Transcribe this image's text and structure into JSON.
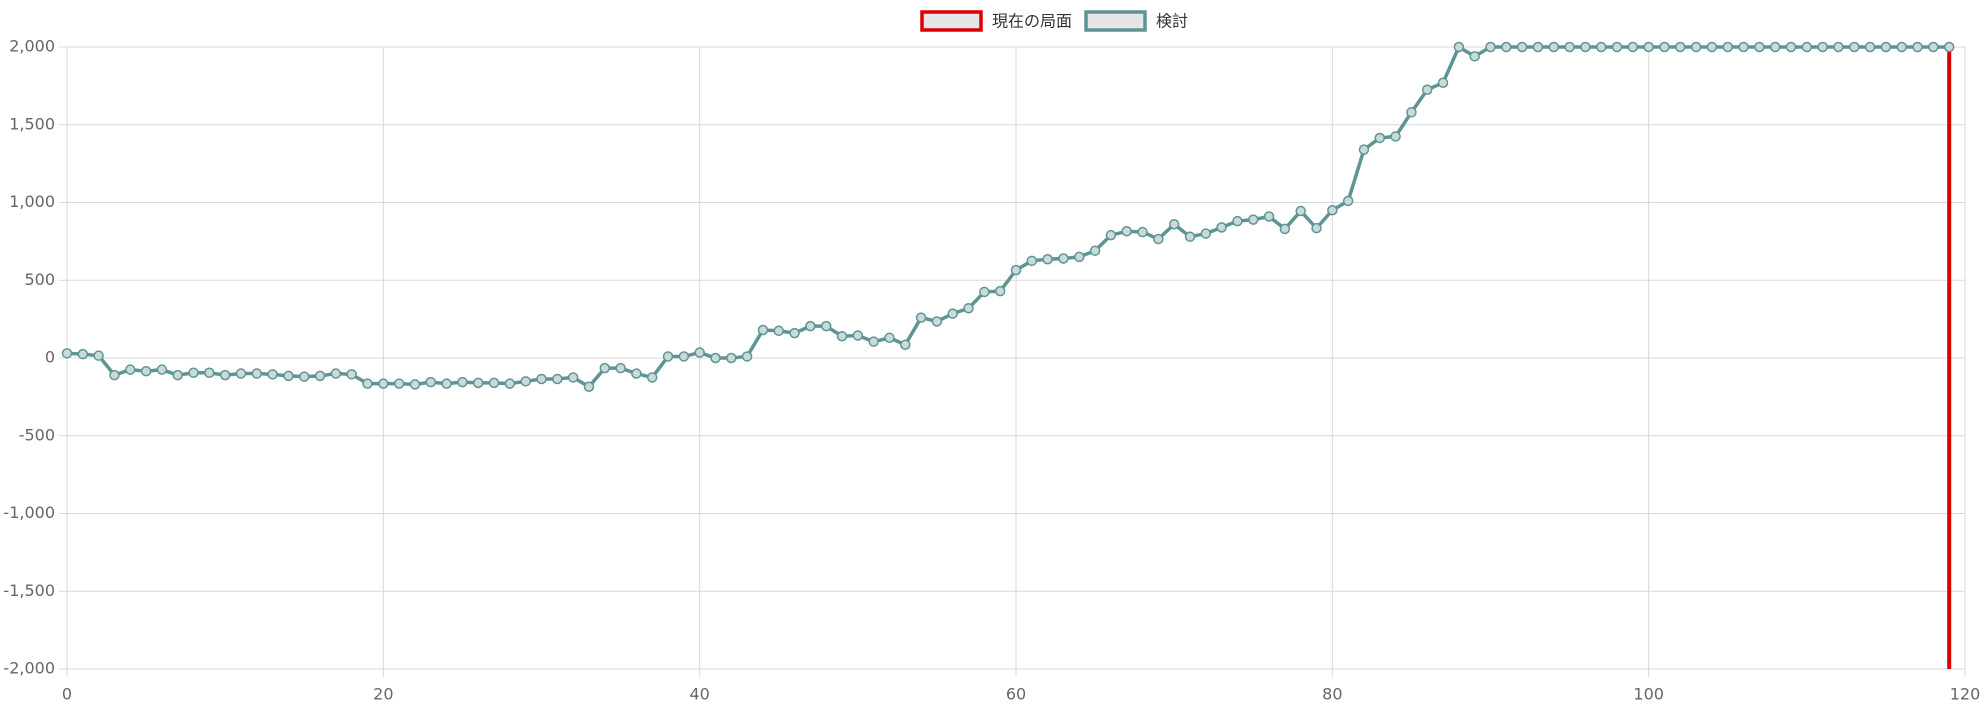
{
  "chart_data": {
    "type": "line",
    "series": [
      {
        "name": "現在の局面",
        "color": "#dd0000",
        "points": false,
        "x": [
          119,
          119
        ],
        "values": [
          -2000,
          2000
        ]
      },
      {
        "name": "検討",
        "color": "#5f9494",
        "points": true,
        "x": [
          0,
          1,
          2,
          3,
          4,
          5,
          6,
          7,
          8,
          9,
          10,
          11,
          12,
          13,
          14,
          15,
          16,
          17,
          18,
          19,
          20,
          21,
          22,
          23,
          24,
          25,
          26,
          27,
          28,
          29,
          30,
          31,
          32,
          33,
          34,
          35,
          36,
          37,
          38,
          39,
          40,
          41,
          42,
          43,
          44,
          45,
          46,
          47,
          48,
          49,
          50,
          51,
          52,
          53,
          54,
          55,
          56,
          57,
          58,
          59,
          60,
          61,
          62,
          63,
          64,
          65,
          66,
          67,
          68,
          69,
          70,
          71,
          72,
          73,
          74,
          75,
          76,
          77,
          78,
          79,
          80,
          81,
          82,
          83,
          84,
          85,
          86,
          87,
          88,
          89,
          90,
          91,
          92,
          93,
          94,
          95,
          96,
          97,
          98,
          99,
          100,
          101,
          102,
          103,
          104,
          105,
          106,
          107,
          108,
          109,
          110,
          111,
          112,
          113,
          114,
          115,
          116,
          117,
          118,
          119
        ],
        "values": [
          30,
          25,
          15,
          -110,
          -75,
          -85,
          -75,
          -110,
          -95,
          -95,
          -110,
          -100,
          -100,
          -105,
          -115,
          -120,
          -115,
          -100,
          -105,
          -165,
          -165,
          -165,
          -170,
          -155,
          -165,
          -155,
          -160,
          -160,
          -165,
          -150,
          -135,
          -135,
          -125,
          -185,
          -65,
          -65,
          -100,
          -125,
          10,
          10,
          35,
          0,
          0,
          10,
          180,
          175,
          160,
          205,
          205,
          140,
          145,
          105,
          130,
          85,
          260,
          235,
          285,
          320,
          425,
          430,
          565,
          625,
          635,
          640,
          650,
          690,
          790,
          815,
          810,
          765,
          860,
          780,
          800,
          840,
          880,
          890,
          910,
          830,
          945,
          835,
          950,
          1010,
          1340,
          1415,
          1425,
          1580,
          1725,
          1770,
          2000,
          1940,
          2000,
          2000,
          2000,
          2000,
          2000,
          2000,
          2000,
          2000,
          2000,
          2000,
          2000,
          2000,
          2000,
          2000,
          2000,
          2000,
          2000,
          2000,
          2000,
          2000,
          2000,
          2000,
          2000,
          2000,
          2000,
          2000,
          2000,
          2000,
          2000,
          2000
        ]
      }
    ],
    "xlim": [
      0,
      120
    ],
    "xticks": [
      0,
      20,
      40,
      60,
      80,
      100,
      120
    ],
    "ylim": [
      -2000,
      2000
    ],
    "yticks": [
      {
        "value": -2000,
        "label": "-2,000"
      },
      {
        "value": -1500,
        "label": "-1,500"
      },
      {
        "value": -1000,
        "label": "-1,000"
      },
      -500,
      0,
      500,
      {
        "value": 1000,
        "label": "1,000"
      },
      {
        "value": 1500,
        "label": "1,500"
      },
      {
        "value": 2000,
        "label": "2,000"
      }
    ],
    "grid": true,
    "legend": "top"
  }
}
